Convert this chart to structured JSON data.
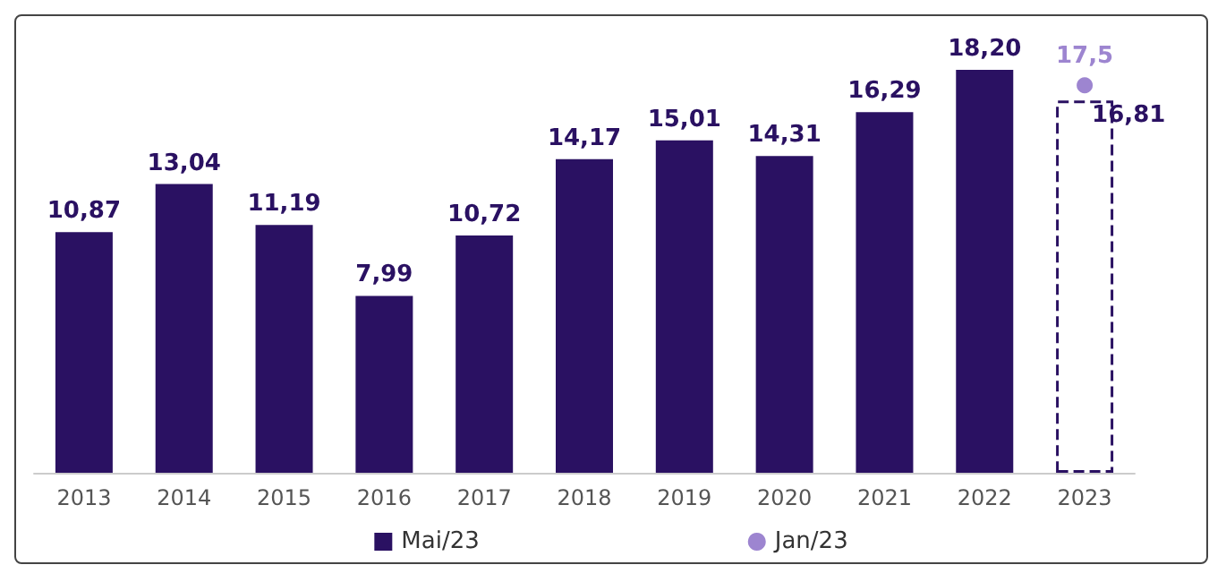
{
  "chart_data": {
    "type": "bar",
    "categories": [
      "2013",
      "2014",
      "2015",
      "2016",
      "2017",
      "2018",
      "2019",
      "2020",
      "2021",
      "2022",
      "2023"
    ],
    "series": [
      {
        "name": "Mai/23",
        "color": "#2a1162",
        "values": [
          10.87,
          13.04,
          11.19,
          7.99,
          10.72,
          14.17,
          15.01,
          14.31,
          16.29,
          18.2,
          null
        ],
        "value_labels": [
          "10,87",
          "13,04",
          "11,19",
          "7,99",
          "10,72",
          "14,17",
          "15,01",
          "14,31",
          "16,29",
          "18,20",
          null
        ]
      },
      {
        "type": "bar",
        "line_style": "dashed",
        "color": "#2a1162",
        "values": [
          null,
          null,
          null,
          null,
          null,
          null,
          null,
          null,
          null,
          null,
          16.81
        ],
        "value_labels": [
          null,
          null,
          null,
          null,
          null,
          null,
          null,
          null,
          null,
          null,
          "16,81"
        ]
      },
      {
        "type": "scatter",
        "name": "Jan/23",
        "color": "#8466c4",
        "marker": "circle",
        "values": [
          null,
          null,
          null,
          null,
          null,
          null,
          null,
          null,
          null,
          null,
          17.5
        ],
        "value_labels": [
          null,
          null,
          null,
          null,
          null,
          null,
          null,
          null,
          null,
          null,
          "17,5"
        ]
      }
    ],
    "legend": "bottom"
  }
}
